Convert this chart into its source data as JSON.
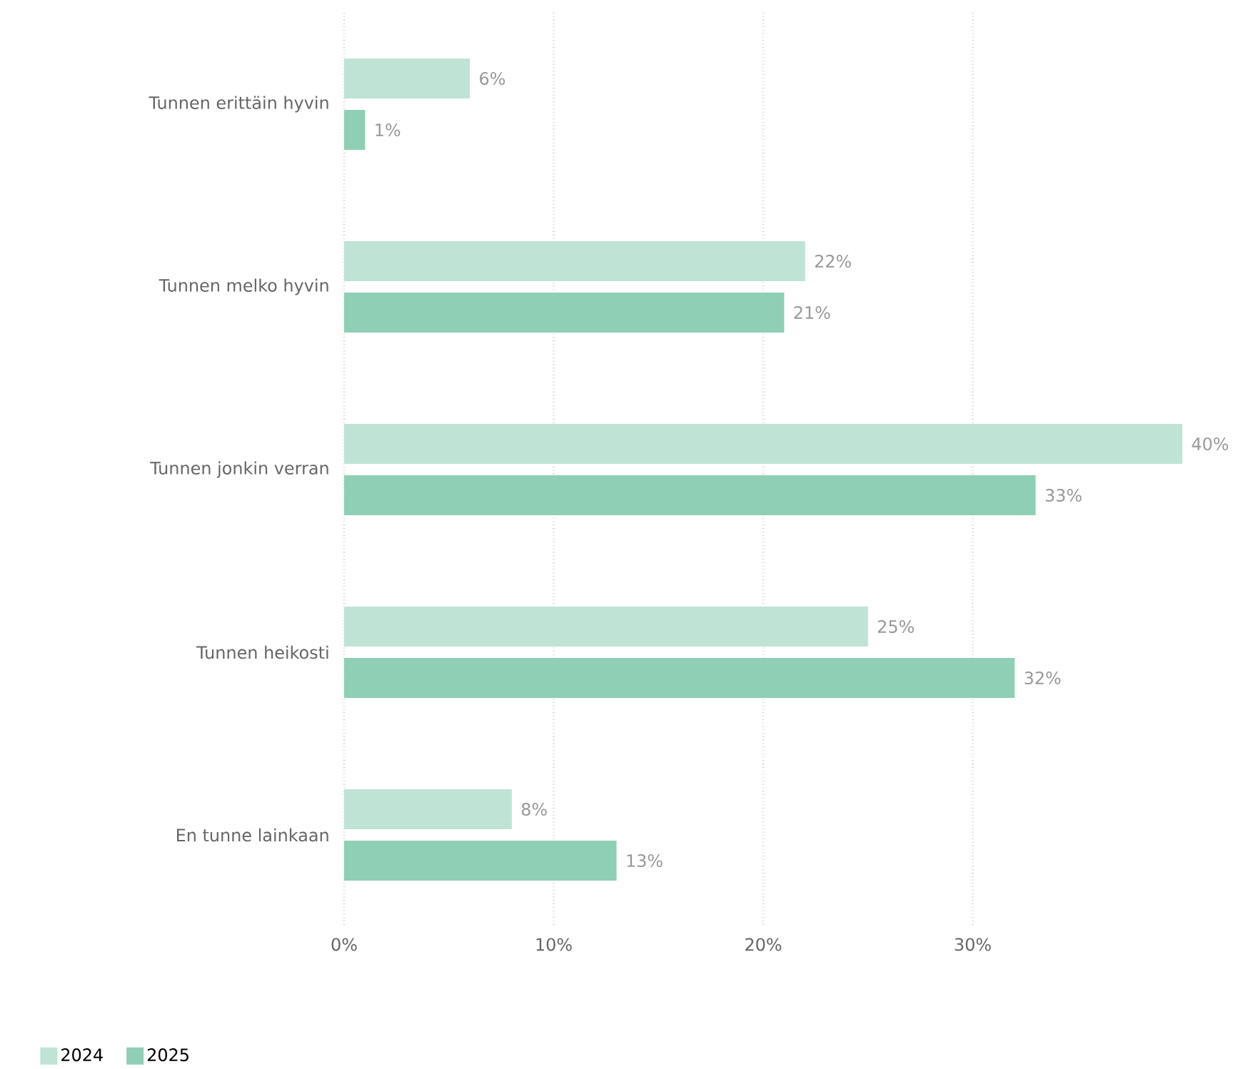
{
  "chart_data": {
    "type": "bar",
    "orientation": "horizontal",
    "categories": [
      "Tunnen erittäin hyvin",
      "Tunnen melko hyvin",
      "Tunnen jonkin verran",
      "Tunnen heikosti",
      "En tunne lainkaan"
    ],
    "series": [
      {
        "name": "2024",
        "color": "#bfe3d4",
        "values": [
          6,
          22,
          40,
          25,
          8
        ],
        "value_labels": [
          "6%",
          "22%",
          "40%",
          "25%",
          "8%"
        ]
      },
      {
        "name": "2025",
        "color": "#8ecfb5",
        "values": [
          1,
          21,
          33,
          32,
          13
        ],
        "value_labels": [
          "1%",
          "21%",
          "33%",
          "32%",
          "13%"
        ]
      }
    ],
    "xlim": [
      0,
      40
    ],
    "xticks": [
      {
        "value": 0,
        "label": "0%"
      },
      {
        "value": 10,
        "label": "10%"
      },
      {
        "value": 20,
        "label": "20%"
      },
      {
        "value": 30,
        "label": "30%"
      }
    ],
    "grid": "x",
    "legend": "bottom left"
  }
}
